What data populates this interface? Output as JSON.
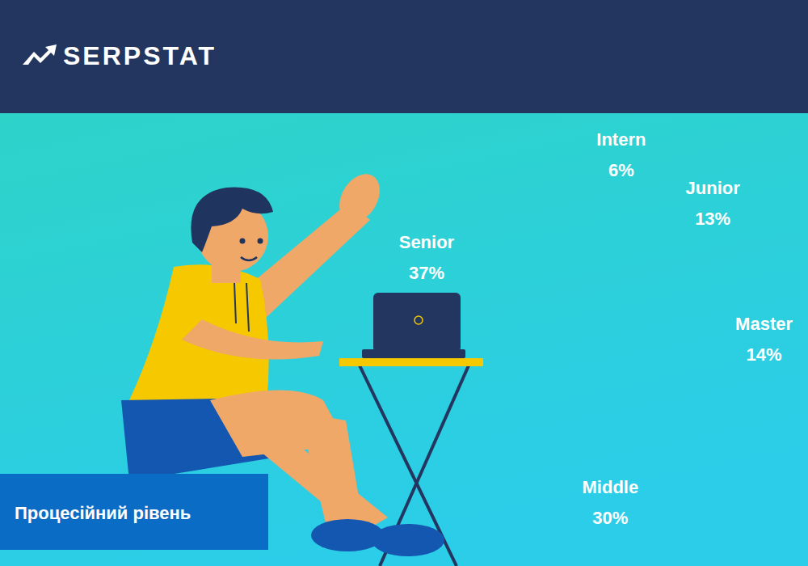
{
  "header": {
    "brand": "SERPSTAT"
  },
  "chart_data": {
    "type": "pie",
    "title": "Процесійний рівень",
    "categories": [
      "Intern",
      "Junior",
      "Master",
      "Middle",
      "Senior"
    ],
    "values": [
      6,
      13,
      14,
      30,
      37
    ],
    "value_labels": [
      "6%",
      "13%",
      "14%",
      "30%",
      "37%"
    ],
    "colors": [
      "#0b6cc6",
      "#7083d6",
      "#a79ae0",
      "#d7bcf2",
      "#fdd9fd"
    ],
    "data_labels": true
  }
}
